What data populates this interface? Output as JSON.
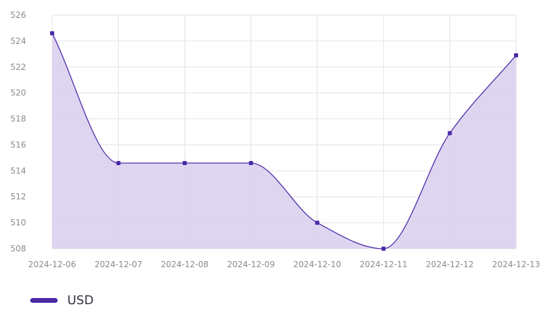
{
  "chart_data": {
    "type": "area",
    "x": [
      "2024-12-06",
      "2024-12-07",
      "2024-12-08",
      "2024-12-09",
      "2024-12-10",
      "2024-12-11",
      "2024-12-12",
      "2024-12-13"
    ],
    "series": [
      {
        "name": "USD",
        "values": [
          524.6,
          514.6,
          514.6,
          514.6,
          510.0,
          508.0,
          516.9,
          522.9
        ]
      }
    ],
    "yticks": [
      508,
      510,
      512,
      514,
      516,
      518,
      520,
      522,
      524,
      526
    ],
    "ylim": [
      508,
      526
    ],
    "grid": true,
    "legend": "bottom-left",
    "colors": {
      "line": "#4B2AA8",
      "fill": "#DCD3F0",
      "point": "#4B2AA8"
    }
  }
}
